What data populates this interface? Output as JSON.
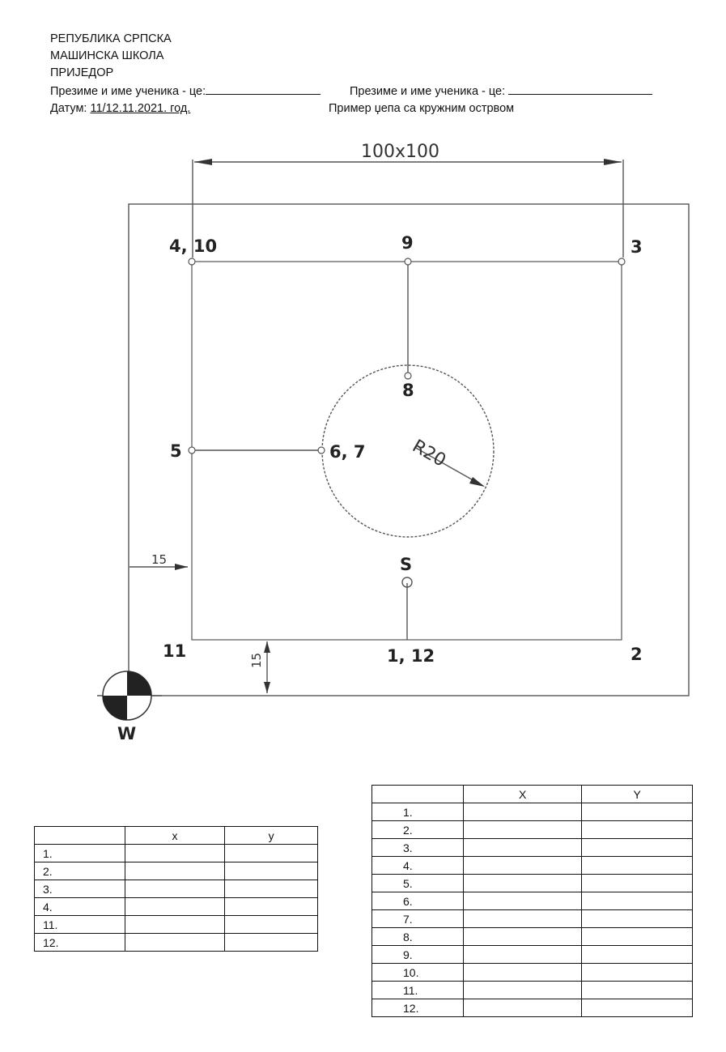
{
  "header": {
    "line1": "РЕПУБЛИКА СРПСКА",
    "line2": "МАШИНСКА ШКОЛА",
    "line3": "ПРИЈЕДОР",
    "student_label_1": "Презиме и име ученика - це:",
    "student_label_2": "Презиме и име ученика - це:",
    "date_label": "Датум:",
    "date_value": "11/12.11.2021. год.",
    "title": "Пример џепа са кружним острвом"
  },
  "drawing": {
    "dimension_top": "100x100",
    "radius_label": "R20",
    "offset_left": "15",
    "offset_bottom": "15",
    "point_labels": {
      "p4_10": "4, 10",
      "p9": "9",
      "p3": "3",
      "p8": "8",
      "p5": "5",
      "p6_7": "6, 7",
      "pS": "S",
      "p11": "11",
      "p1_12": "1, 12",
      "p2": "2",
      "pW": "W"
    }
  },
  "table_small": {
    "headers": [
      "",
      "x",
      "y"
    ],
    "rows": [
      "1.",
      "2.",
      "3.",
      "4.",
      "11.",
      "12."
    ]
  },
  "table_large": {
    "headers": [
      "",
      "X",
      "Y"
    ],
    "rows": [
      "1.",
      "2.",
      "3.",
      "4.",
      "5.",
      "6.",
      "7.",
      "8.",
      "9.",
      "10.",
      "11.",
      "12."
    ]
  }
}
